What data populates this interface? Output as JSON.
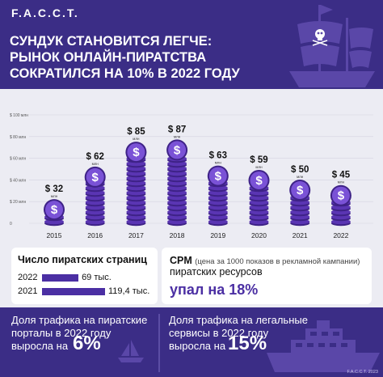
{
  "brand": {
    "logo": "F.A.C.C.T.",
    "copyright": "F.A.C.C.T. 2023"
  },
  "header": {
    "title_lines": [
      "СУНДУК СТАНОВИТСЯ ЛЕГЧЕ:",
      "РЫНОК ОНЛАЙН-ПИРАТСТВА",
      "СОКРАТИЛСЯ НА 10% В 2022 ГОДУ"
    ]
  },
  "chart_data": {
    "type": "bar",
    "categories": [
      "2015",
      "2016",
      "2017",
      "2018",
      "2019",
      "2020",
      "2021",
      "2022"
    ],
    "values": [
      32,
      62,
      85,
      87,
      63,
      59,
      50,
      45
    ],
    "value_labels": [
      "$ 32",
      "$ 62",
      "$ 85",
      "$ 87",
      "$ 63",
      "$ 59",
      "$ 50",
      "$ 45"
    ],
    "unit_label": "млн",
    "y_ticks": [
      "$ 100 млн",
      "$ 80 млн",
      "$ 60 млн",
      "$ 40 млн",
      "$ 20 млн",
      "0"
    ],
    "y_tick_values": [
      100,
      80,
      60,
      40,
      20,
      0
    ],
    "ylim": [
      0,
      100
    ],
    "grid": true,
    "colors": {
      "coin": "#5a35b3",
      "coin_edge": "#3e2287",
      "coin_face": "#7a52d6",
      "dollar": "#ffffff"
    }
  },
  "pages": {
    "title": "Число пиратских страниц",
    "rows": [
      {
        "year": "2022",
        "value": 69,
        "label": "69 тыс."
      },
      {
        "year": "2021",
        "value": 119.4,
        "label": "119,4 тыс."
      }
    ]
  },
  "cpm": {
    "title": "CPM",
    "note": "(цена за 1000 показов в рекламной кампании)",
    "subtitle": "пиратских ресурсов",
    "value": "упал на 18%"
  },
  "traffic": {
    "pirate": {
      "lines": [
        "Доля трафика на пиратские",
        "порталы в 2022 году",
        "выросла на"
      ],
      "percent": "6%"
    },
    "legal": {
      "lines": [
        "Доля трафика на легальные",
        "сервисы в 2022 году",
        "выросла на"
      ],
      "percent": "15%"
    }
  }
}
